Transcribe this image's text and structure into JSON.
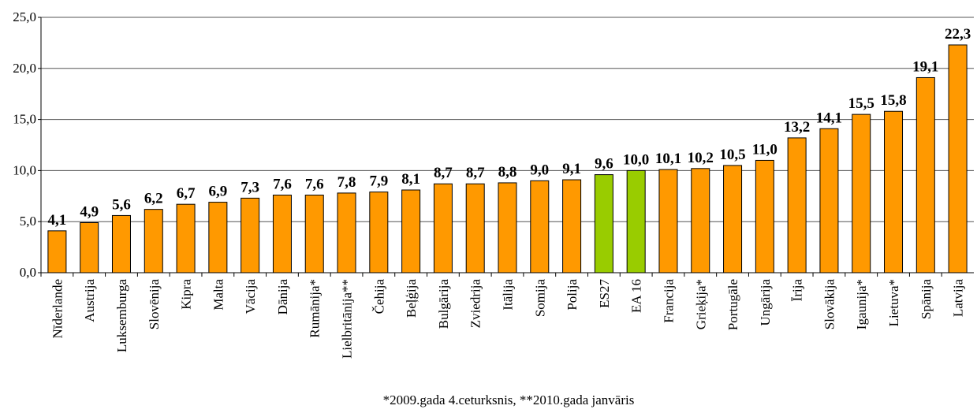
{
  "chart_data": {
    "type": "bar",
    "categories": [
      "Nīderlande",
      "Austrija",
      "Luksemburga",
      "Slovēnija",
      "Kipra",
      "Malta",
      "Vācija",
      "Dānija",
      "Rumānija*",
      "Lielbritānija**",
      "Čehija",
      "Beļģija",
      "Bulgārija",
      "Zviedrija",
      "Itālija",
      "Somija",
      "Polija",
      "ES27",
      "EA 16",
      "Francija",
      "Grieķija*",
      "Portugāle",
      "Ungārija",
      "Īrija",
      "Slovākija",
      "Igaunija*",
      "Lietuva*",
      "Spānija",
      "Latvija"
    ],
    "values": [
      4.1,
      4.9,
      5.6,
      6.2,
      6.7,
      6.9,
      7.3,
      7.6,
      7.6,
      7.8,
      7.9,
      8.1,
      8.7,
      8.7,
      8.8,
      9.0,
      9.1,
      9.6,
      10.0,
      10.1,
      10.2,
      10.5,
      11.0,
      13.2,
      14.1,
      15.5,
      15.8,
      19.1,
      22.3
    ],
    "value_labels": [
      "4,1",
      "4,9",
      "5,6",
      "6,2",
      "6,7",
      "6,9",
      "7,3",
      "7,6",
      "7,6",
      "7,8",
      "7,9",
      "8,1",
      "8,7",
      "8,7",
      "8,8",
      "9,0",
      "9,1",
      "9,6",
      "10,0",
      "10,1",
      "10,2",
      "10,5",
      "11,0",
      "13,2",
      "14,1",
      "15,5",
      "15,8",
      "19,1",
      "22,3"
    ],
    "colors": [
      "#ff9900",
      "#ff9900",
      "#ff9900",
      "#ff9900",
      "#ff9900",
      "#ff9900",
      "#ff9900",
      "#ff9900",
      "#ff9900",
      "#ff9900",
      "#ff9900",
      "#ff9900",
      "#ff9900",
      "#ff9900",
      "#ff9900",
      "#ff9900",
      "#ff9900",
      "#99cc00",
      "#99cc00",
      "#ff9900",
      "#ff9900",
      "#ff9900",
      "#ff9900",
      "#ff9900",
      "#ff9900",
      "#ff9900",
      "#ff9900",
      "#ff9900",
      "#ff9900"
    ],
    "ylim": [
      0,
      25
    ],
    "yticks": [
      {
        "value": 0,
        "label": "0,0"
      },
      {
        "value": 5,
        "label": "5,0"
      },
      {
        "value": 10,
        "label": "10,0"
      },
      {
        "value": 15,
        "label": "15,0"
      },
      {
        "value": 20,
        "label": "20,0"
      },
      {
        "value": 25,
        "label": "25,0"
      }
    ],
    "grid": true,
    "note": "*2009.gada 4.ceturksnis, **2010.gada janvāris"
  }
}
